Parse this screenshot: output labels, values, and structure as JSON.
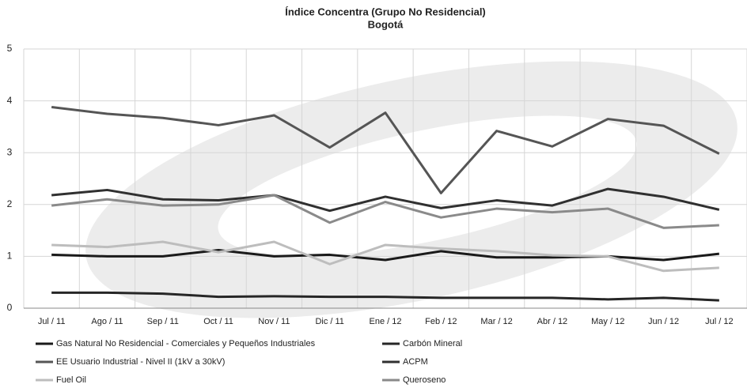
{
  "chart_data": {
    "type": "line",
    "title": "Índice Concentra (Grupo No Residencial)",
    "subtitle": "Bogotá",
    "categories": [
      "Jul / 11",
      "Ago / 11",
      "Sep / 11",
      "Oct / 11",
      "Nov / 11",
      "Dic / 11",
      "Ene / 12",
      "Feb / 12",
      "Mar / 12",
      "Abr / 12",
      "May / 12",
      "Jun / 12",
      "Jul / 12"
    ],
    "series": [
      {
        "name": "Gas Natural No Residencial - Comerciales y Pequeños Industriales",
        "color": "#1a1a1a",
        "values": [
          1.03,
          1.0,
          1.0,
          1.12,
          1.0,
          1.03,
          0.93,
          1.1,
          0.98,
          0.98,
          1.0,
          0.93,
          1.05
        ]
      },
      {
        "name": "Carbón Mineral",
        "color": "#262626",
        "values": [
          0.3,
          0.3,
          0.28,
          0.22,
          0.23,
          0.22,
          0.22,
          0.2,
          0.2,
          0.2,
          0.17,
          0.2,
          0.15
        ]
      },
      {
        "name": "EE Usuario Industrial - Nivel II (1kV a 30kV)",
        "color": "#555555",
        "values": [
          3.88,
          3.75,
          3.67,
          3.53,
          3.72,
          3.1,
          3.77,
          2.22,
          3.42,
          3.12,
          3.65,
          3.52,
          2.98
        ]
      },
      {
        "name": "ACPM",
        "color": "#303030",
        "values": [
          2.18,
          2.28,
          2.1,
          2.08,
          2.18,
          1.88,
          2.15,
          1.93,
          2.08,
          1.98,
          2.3,
          2.15,
          1.9
        ]
      },
      {
        "name": "Fuel Oil",
        "color": "#bdbdbd",
        "values": [
          1.22,
          1.18,
          1.28,
          1.08,
          1.28,
          0.85,
          1.22,
          1.15,
          1.1,
          1.02,
          1.0,
          0.72,
          0.78
        ]
      },
      {
        "name": "Queroseno",
        "color": "#8a8a8a",
        "values": [
          1.98,
          2.1,
          1.98,
          2.0,
          2.18,
          1.65,
          2.05,
          1.75,
          1.92,
          1.85,
          1.92,
          1.55,
          1.6
        ]
      }
    ],
    "ylim": [
      0,
      5
    ],
    "yticks": [
      0,
      1,
      2,
      3,
      4,
      5
    ],
    "grid": true
  }
}
